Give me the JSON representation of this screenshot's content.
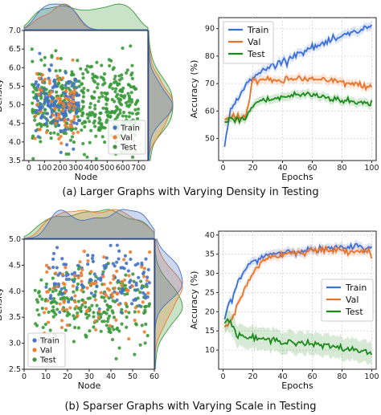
{
  "captions": {
    "a": "(a) Larger Graphs with Varying Density in Testing",
    "b": "(b) Sparser Graphs with Varying Scale in Testing"
  },
  "colors": {
    "train": "#4472c4",
    "val": "#ed7d31",
    "test": "#3a9a3a",
    "train_line": "#3b6fd8",
    "val_line": "#e8742a",
    "test_line": "#1a8a1a"
  },
  "chart_data": [
    {
      "id": "a_scatter",
      "type": "scatter",
      "xlabel": "Node",
      "ylabel": "Density",
      "xlim": [
        -30,
        760
      ],
      "ylim": [
        3.5,
        7.0
      ],
      "xticks": [
        0,
        100,
        200,
        300,
        400,
        500,
        600,
        700
      ],
      "yticks": [
        3.5,
        4.0,
        4.5,
        5.0,
        5.5,
        6.0,
        6.5,
        7.0
      ],
      "ytick_labels": [
        "3.5",
        "4.0",
        "4.5",
        "5.0",
        "5.5",
        "6.0",
        "6.5",
        "7.0"
      ],
      "legend": [
        "Train",
        "Val",
        "Test"
      ],
      "series": [
        {
          "name": "Train",
          "x_range": [
            40,
            320
          ],
          "y_mean": 5.0,
          "y_sd": 0.45,
          "count": 150
        },
        {
          "name": "Val",
          "x_range": [
            40,
            320
          ],
          "y_mean": 5.0,
          "y_sd": 0.5,
          "count": 70
        },
        {
          "name": "Test",
          "x_range": [
            20,
            700
          ],
          "y_mean": 5.0,
          "y_sd": 0.55,
          "count": 450
        }
      ],
      "marginals": true
    },
    {
      "id": "a_line",
      "type": "line",
      "xlabel": "Epochs",
      "ylabel": "Accuracy (%)",
      "xlim": [
        -3,
        103
      ],
      "ylim": [
        42,
        94
      ],
      "xticks": [
        0,
        20,
        40,
        60,
        80,
        100
      ],
      "yticks": [
        50,
        60,
        70,
        80,
        90
      ],
      "x": [
        1,
        3,
        5,
        8,
        10,
        15,
        20,
        25,
        30,
        40,
        50,
        60,
        70,
        80,
        90,
        100
      ],
      "series": [
        {
          "name": "Train",
          "values": [
            47,
            55,
            60,
            63,
            65,
            69,
            72,
            74,
            76,
            78,
            81,
            83,
            85,
            87,
            89,
            91
          ]
        },
        {
          "name": "Val",
          "values": [
            57,
            57,
            58,
            58,
            58,
            58,
            71,
            71.5,
            71,
            71,
            72,
            71.5,
            71,
            70.5,
            69.5,
            69
          ]
        },
        {
          "name": "Test",
          "values": [
            56,
            56,
            57,
            57,
            57,
            57,
            62,
            64,
            64,
            65,
            66,
            66,
            65,
            64,
            63,
            63
          ]
        }
      ],
      "legend": [
        "Train",
        "Val",
        "Test"
      ],
      "legend_position": "top-left",
      "grid": true
    },
    {
      "id": "b_scatter",
      "type": "scatter",
      "xlabel": "Node",
      "ylabel": "Density",
      "xlim": [
        0,
        60
      ],
      "ylim": [
        2.5,
        5.0
      ],
      "xticks": [
        0,
        10,
        20,
        30,
        40,
        50,
        60
      ],
      "yticks": [
        2.5,
        3.0,
        3.5,
        4.0,
        4.5,
        5.0
      ],
      "ytick_labels": [
        "2.5",
        "3.0",
        "3.5",
        "4.0",
        "4.5",
        "5.0"
      ],
      "legend": [
        "Train",
        "Val",
        "Test"
      ],
      "series": [
        {
          "name": "Train",
          "x_range": [
            10,
            58
          ],
          "y_mean": 4.2,
          "y_sd": 0.3,
          "count": 120
        },
        {
          "name": "Val",
          "x_range": [
            8,
            58
          ],
          "y_mean": 4.0,
          "y_sd": 0.35,
          "count": 100
        },
        {
          "name": "Test",
          "x_range": [
            5,
            58
          ],
          "y_mean": 3.7,
          "y_sd": 0.35,
          "count": 220
        }
      ],
      "marginals": true
    },
    {
      "id": "b_line",
      "type": "line",
      "xlabel": "Epochs",
      "ylabel": "Accuracy (%)",
      "xlim": [
        -3,
        103
      ],
      "ylim": [
        5,
        41
      ],
      "xticks": [
        0,
        20,
        40,
        60,
        80,
        100
      ],
      "yticks": [
        10,
        15,
        20,
        25,
        30,
        35,
        40
      ],
      "x": [
        1,
        3,
        5,
        8,
        10,
        15,
        20,
        25,
        30,
        40,
        50,
        60,
        70,
        80,
        90,
        100
      ],
      "series": [
        {
          "name": "Train",
          "values": [
            18,
            21,
            23,
            25,
            28,
            31,
            33,
            34,
            35,
            35.5,
            36,
            36,
            36.5,
            36.5,
            37,
            36.5
          ]
        },
        {
          "name": "Val",
          "values": [
            16,
            17,
            18,
            20,
            22,
            26,
            30,
            33,
            34,
            35,
            35.5,
            36,
            36,
            36,
            36,
            35.5
          ]
        },
        {
          "name": "Test",
          "values": [
            17,
            18,
            17,
            15,
            14,
            13.5,
            13,
            13,
            12.5,
            12.5,
            12,
            11.5,
            11,
            10.5,
            10,
            9.5
          ]
        }
      ],
      "legend": [
        "Train",
        "Val",
        "Test"
      ],
      "legend_position": "center-right",
      "grid": true
    }
  ]
}
